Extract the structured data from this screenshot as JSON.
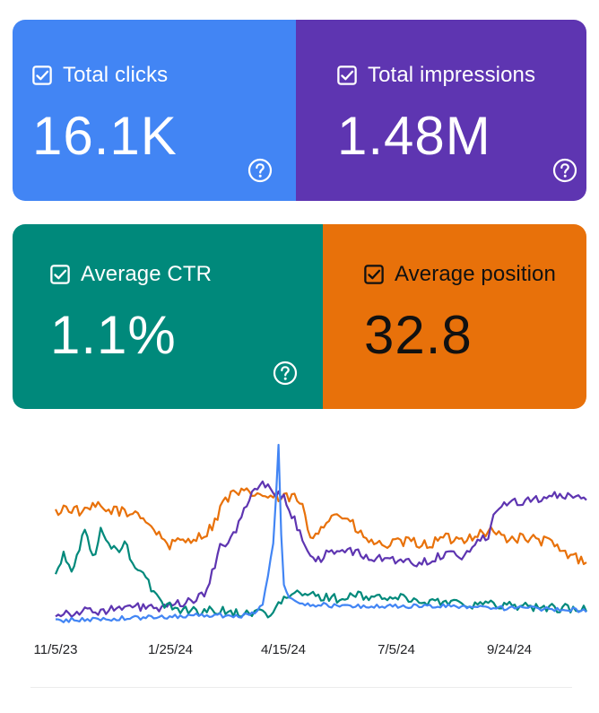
{
  "metrics": {
    "clicks": {
      "label": "Total clicks",
      "value": "16.1K",
      "checked": true,
      "color": "#4285f4"
    },
    "impressions": {
      "label": "Total impressions",
      "value": "1.48M",
      "checked": true,
      "color": "#5e35b1"
    },
    "ctr": {
      "label": "Average CTR",
      "value": "1.1%",
      "checked": true,
      "color": "#00897b"
    },
    "position": {
      "label": "Average position",
      "value": "32.8",
      "checked": true,
      "color": "#e8710a"
    }
  },
  "icons": {
    "checkbox": "checkbox-checked-icon",
    "help": "help-circle-icon"
  },
  "chart_data": {
    "type": "line",
    "title": "",
    "xlabel": "",
    "ylabel": "",
    "grid": false,
    "legend": "none",
    "x_range": [
      0,
      400
    ],
    "y_range": [
      0,
      100
    ],
    "x_ticks": [
      {
        "x": 0,
        "label": "11/5/23"
      },
      {
        "x": 82,
        "label": "1/25/24"
      },
      {
        "x": 164,
        "label": "4/15/24"
      },
      {
        "x": 245,
        "label": "7/5/24"
      },
      {
        "x": 326,
        "label": "9/24/24"
      }
    ],
    "series": [
      {
        "name": "Average position",
        "color": "#e8710a",
        "anchors": [
          [
            0,
            62
          ],
          [
            6,
            65
          ],
          [
            14,
            64
          ],
          [
            22,
            62
          ],
          [
            30,
            66
          ],
          [
            38,
            63
          ],
          [
            46,
            64
          ],
          [
            54,
            61
          ],
          [
            62,
            63
          ],
          [
            70,
            56
          ],
          [
            78,
            50
          ],
          [
            86,
            44
          ],
          [
            94,
            46
          ],
          [
            102,
            48
          ],
          [
            110,
            49
          ],
          [
            116,
            53
          ],
          [
            122,
            60
          ],
          [
            126,
            68
          ],
          [
            132,
            72
          ],
          [
            140,
            73
          ],
          [
            150,
            73
          ],
          [
            160,
            71
          ],
          [
            170,
            70
          ],
          [
            180,
            71
          ],
          [
            186,
            65
          ],
          [
            192,
            48
          ],
          [
            200,
            55
          ],
          [
            212,
            62
          ],
          [
            222,
            57
          ],
          [
            232,
            48
          ],
          [
            244,
            44
          ],
          [
            256,
            45
          ],
          [
            268,
            46
          ],
          [
            280,
            44
          ],
          [
            292,
            48
          ],
          [
            304,
            47
          ],
          [
            316,
            50
          ],
          [
            328,
            52
          ],
          [
            340,
            48
          ],
          [
            352,
            48
          ],
          [
            362,
            47
          ],
          [
            372,
            46
          ],
          [
            382,
            40
          ],
          [
            392,
            37
          ],
          [
            400,
            36
          ]
        ],
        "noise": 3
      },
      {
        "name": "Total impressions",
        "color": "#5e35b1",
        "anchors": [
          [
            0,
            6
          ],
          [
            40,
            8
          ],
          [
            70,
            10
          ],
          [
            78,
            8
          ],
          [
            88,
            10
          ],
          [
            96,
            12
          ],
          [
            106,
            14
          ],
          [
            112,
            16
          ],
          [
            118,
            28
          ],
          [
            124,
            45
          ],
          [
            128,
            42
          ],
          [
            134,
            50
          ],
          [
            140,
            60
          ],
          [
            148,
            72
          ],
          [
            156,
            80
          ],
          [
            162,
            75
          ],
          [
            168,
            72
          ],
          [
            172,
            70
          ],
          [
            180,
            58
          ],
          [
            186,
            48
          ],
          [
            196,
            34
          ],
          [
            206,
            40
          ],
          [
            216,
            42
          ],
          [
            226,
            40
          ],
          [
            238,
            36
          ],
          [
            250,
            37
          ],
          [
            262,
            35
          ],
          [
            274,
            34
          ],
          [
            286,
            37
          ],
          [
            296,
            40
          ],
          [
            306,
            38
          ],
          [
            316,
            44
          ],
          [
            326,
            50
          ],
          [
            330,
            63
          ],
          [
            340,
            68
          ],
          [
            352,
            69
          ],
          [
            362,
            70
          ],
          [
            372,
            72
          ],
          [
            382,
            71
          ],
          [
            392,
            70
          ],
          [
            400,
            70
          ]
        ],
        "noise": 2.5
      },
      {
        "name": "Average CTR",
        "color": "#00897b",
        "anchors": [
          [
            0,
            28
          ],
          [
            6,
            38
          ],
          [
            12,
            30
          ],
          [
            18,
            42
          ],
          [
            22,
            55
          ],
          [
            28,
            36
          ],
          [
            34,
            52
          ],
          [
            40,
            44
          ],
          [
            46,
            40
          ],
          [
            52,
            46
          ],
          [
            58,
            34
          ],
          [
            64,
            30
          ],
          [
            72,
            20
          ],
          [
            80,
            12
          ],
          [
            90,
            9
          ],
          [
            100,
            8
          ],
          [
            110,
            7
          ],
          [
            120,
            8
          ],
          [
            130,
            7
          ],
          [
            140,
            6
          ],
          [
            150,
            7
          ],
          [
            160,
            6
          ],
          [
            166,
            10
          ],
          [
            174,
            14
          ],
          [
            180,
            18
          ],
          [
            186,
            16
          ],
          [
            196,
            16
          ],
          [
            206,
            15
          ],
          [
            216,
            14
          ],
          [
            226,
            16
          ],
          [
            236,
            15
          ],
          [
            246,
            15
          ],
          [
            256,
            15
          ],
          [
            266,
            14
          ],
          [
            276,
            13
          ],
          [
            286,
            12
          ],
          [
            296,
            13
          ],
          [
            306,
            12
          ],
          [
            316,
            11
          ],
          [
            326,
            11
          ],
          [
            340,
            11
          ],
          [
            356,
            10
          ],
          [
            370,
            9
          ],
          [
            384,
            9
          ],
          [
            400,
            8
          ]
        ],
        "noise": 2.5
      },
      {
        "name": "Total clicks",
        "color": "#4285f4",
        "anchors": [
          [
            0,
            2
          ],
          [
            40,
            3
          ],
          [
            80,
            4
          ],
          [
            100,
            5
          ],
          [
            120,
            5
          ],
          [
            140,
            5
          ],
          [
            150,
            6
          ],
          [
            156,
            10
          ],
          [
            160,
            28
          ],
          [
            164,
            45
          ],
          [
            166,
            70
          ],
          [
            168,
            100
          ],
          [
            170,
            50
          ],
          [
            172,
            22
          ],
          [
            176,
            14
          ],
          [
            182,
            12
          ],
          [
            196,
            11
          ],
          [
            216,
            10
          ],
          [
            236,
            10
          ],
          [
            256,
            10
          ],
          [
            276,
            10
          ],
          [
            296,
            10
          ],
          [
            316,
            10
          ],
          [
            336,
            9
          ],
          [
            356,
            9
          ],
          [
            376,
            8
          ],
          [
            400,
            8
          ]
        ],
        "noise": 1.3
      }
    ]
  }
}
